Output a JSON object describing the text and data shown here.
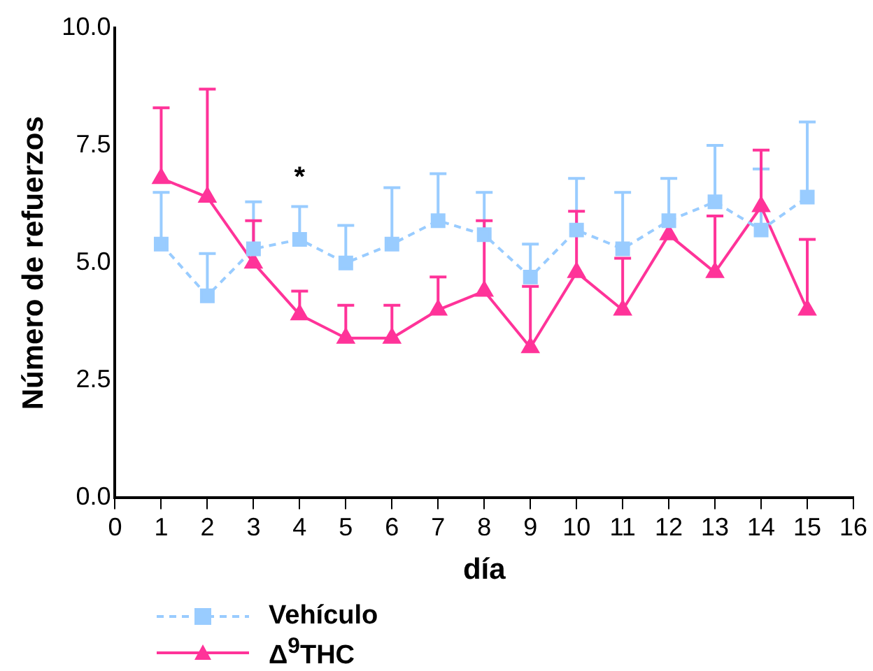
{
  "chart_data": {
    "type": "line",
    "xlabel": "día",
    "ylabel": "Número de refuerzos",
    "x": [
      1,
      2,
      3,
      4,
      5,
      6,
      7,
      8,
      9,
      10,
      11,
      12,
      13,
      14,
      15
    ],
    "xlim": [
      0,
      16
    ],
    "xticks": [
      0,
      1,
      2,
      3,
      4,
      5,
      6,
      7,
      8,
      9,
      10,
      11,
      12,
      13,
      14,
      15,
      16
    ],
    "ylim": [
      0,
      10
    ],
    "yticks": [
      {
        "value": 0,
        "label": "0.0"
      },
      {
        "value": 2.5,
        "label": "2.5"
      },
      {
        "value": 5,
        "label": "5.0"
      },
      {
        "value": 7.5,
        "label": "7.5"
      },
      {
        "value": 10,
        "label": "10.0"
      }
    ],
    "grid": false,
    "legend": "bottom left",
    "annotations": [
      "*"
    ],
    "series": [
      {
        "name": "Vehículo",
        "color": "#99ccff",
        "marker": "square",
        "line_style": "dashed",
        "values": [
          5.4,
          4.3,
          5.3,
          5.5,
          5.0,
          5.4,
          5.9,
          5.6,
          4.7,
          5.7,
          5.3,
          5.9,
          6.3,
          5.7,
          6.4
        ],
        "errors": [
          [
            5.4,
            6.5
          ],
          [
            4.3,
            5.2
          ],
          [
            5.3,
            6.3
          ],
          [
            5.5,
            6.2
          ],
          [
            5.0,
            5.8
          ],
          [
            5.4,
            6.6
          ],
          [
            5.9,
            6.9
          ],
          [
            5.6,
            6.5
          ],
          [
            4.7,
            5.4
          ],
          [
            5.7,
            6.8
          ],
          [
            5.3,
            6.5
          ],
          [
            5.9,
            6.8
          ],
          [
            6.3,
            7.5
          ],
          [
            5.7,
            7.0
          ],
          [
            6.4,
            8.0
          ]
        ]
      },
      {
        "name": "Δ$^{9}$THC",
        "color": "#ff3399",
        "marker": "triangle",
        "line_style": "solid",
        "values": [
          6.8,
          6.4,
          5.0,
          3.9,
          3.4,
          3.4,
          4.0,
          4.4,
          3.2,
          4.8,
          4.0,
          5.6,
          4.8,
          6.2,
          4.0
        ],
        "errors": [
          [
            6.8,
            8.3
          ],
          [
            6.4,
            8.7
          ],
          [
            5.0,
            5.9
          ],
          [
            3.9,
            4.4
          ],
          [
            3.4,
            4.1
          ],
          [
            3.4,
            4.1
          ],
          [
            4.0,
            4.7
          ],
          [
            4.4,
            5.9
          ],
          [
            3.2,
            4.5
          ],
          [
            4.8,
            6.1
          ],
          [
            4.0,
            5.1
          ],
          null,
          [
            4.8,
            6.0
          ],
          [
            6.2,
            7.4
          ],
          [
            4.0,
            5.5
          ]
        ]
      }
    ]
  }
}
